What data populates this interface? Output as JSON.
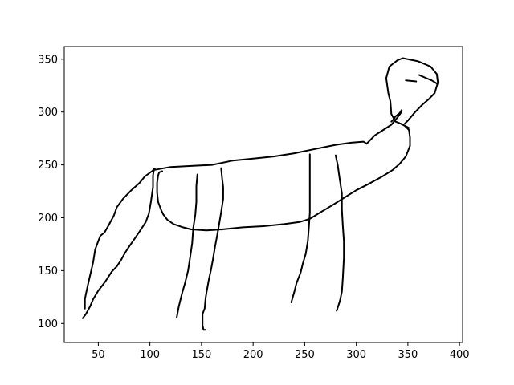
{
  "chart_data": {
    "type": "line",
    "title": "",
    "xlabel": "",
    "ylabel": "",
    "xlim": [
      17,
      403
    ],
    "ylim": [
      82,
      362
    ],
    "grid": false,
    "x_ticks": [
      50,
      100,
      150,
      200,
      250,
      300,
      350,
      400
    ],
    "y_ticks": [
      100,
      150,
      200,
      250,
      300,
      350
    ],
    "x_tick_labels": [
      "50",
      "100",
      "150",
      "200",
      "250",
      "300",
      "350",
      "400"
    ],
    "y_tick_labels": [
      "100",
      "150",
      "200",
      "250",
      "300",
      "350"
    ],
    "line_color": "#000000",
    "series": [
      {
        "points": [
          [
            35,
            105
          ],
          [
            38,
            109
          ],
          [
            42,
            116
          ],
          [
            45,
            123
          ],
          [
            50,
            131
          ],
          [
            57,
            140
          ],
          [
            63,
            149
          ],
          [
            68,
            154
          ],
          [
            72,
            160
          ],
          [
            76,
            167
          ],
          [
            80,
            173
          ],
          [
            85,
            180
          ],
          [
            90,
            187
          ],
          [
            96,
            196
          ],
          [
            99,
            204
          ],
          [
            101,
            215
          ],
          [
            103,
            229
          ],
          [
            103,
            240
          ],
          [
            104,
            246
          ]
        ]
      },
      {
        "points": [
          [
            37,
            114
          ],
          [
            37,
            123
          ],
          [
            38,
            128
          ],
          [
            40,
            137
          ],
          [
            45,
            158
          ],
          [
            47,
            170
          ],
          [
            50,
            178
          ],
          [
            52,
            183
          ],
          [
            56,
            186
          ],
          [
            60,
            193
          ],
          [
            65,
            202
          ],
          [
            68,
            210
          ],
          [
            74,
            218
          ],
          [
            82,
            226
          ],
          [
            90,
            233
          ],
          [
            95,
            239
          ],
          [
            102,
            244
          ],
          [
            105,
            246
          ]
        ]
      },
      {
        "points": [
          [
            103,
            245
          ],
          [
            120,
            248
          ],
          [
            140,
            249
          ],
          [
            160,
            250
          ],
          [
            180,
            254
          ],
          [
            200,
            256
          ],
          [
            220,
            258
          ],
          [
            240,
            261
          ],
          [
            260,
            265
          ],
          [
            280,
            269
          ],
          [
            295,
            271
          ],
          [
            307,
            272
          ],
          [
            310,
            270
          ]
        ]
      },
      {
        "points": [
          [
            310,
            270
          ],
          [
            318,
            278
          ],
          [
            326,
            283
          ],
          [
            334,
            288
          ],
          [
            340,
            295
          ],
          [
            343,
            299
          ],
          [
            344,
            302
          ],
          [
            342,
            299
          ],
          [
            338,
            296
          ],
          [
            336,
            293
          ],
          [
            334,
            291
          ]
        ]
      },
      {
        "points": [
          [
            351,
            285
          ],
          [
            347,
            287
          ],
          [
            343,
            289
          ],
          [
            338,
            291
          ],
          [
            334,
            298
          ],
          [
            333,
            310
          ],
          [
            331,
            318
          ],
          [
            330,
            325
          ],
          [
            329,
            332
          ],
          [
            332,
            343
          ],
          [
            340,
            349
          ],
          [
            345,
            351
          ],
          [
            360,
            348
          ],
          [
            372,
            343
          ],
          [
            378,
            336
          ],
          [
            379,
            328
          ],
          [
            376,
            318
          ],
          [
            370,
            312
          ],
          [
            364,
            307
          ],
          [
            357,
            300
          ],
          [
            350,
            292
          ],
          [
            347,
            289
          ]
        ]
      },
      {
        "points": [
          [
            347,
            287
          ],
          [
            351,
            283
          ],
          [
            352,
            276
          ],
          [
            352,
            268
          ],
          [
            348,
            258
          ],
          [
            342,
            251
          ],
          [
            335,
            245
          ],
          [
            325,
            239
          ],
          [
            312,
            232
          ],
          [
            300,
            226
          ],
          [
            290,
            220
          ],
          [
            277,
            212
          ],
          [
            265,
            205
          ],
          [
            255,
            199
          ],
          [
            245,
            196
          ],
          [
            230,
            194
          ],
          [
            210,
            192
          ],
          [
            190,
            191
          ],
          [
            170,
            189
          ],
          [
            155,
            188
          ],
          [
            140,
            189
          ],
          [
            132,
            191
          ],
          [
            123,
            194
          ],
          [
            117,
            198
          ],
          [
            113,
            203
          ],
          [
            111,
            207
          ],
          [
            108,
            215
          ],
          [
            107,
            224
          ],
          [
            107,
            233
          ],
          [
            108,
            240
          ],
          [
            109,
            243
          ],
          [
            112,
            244
          ]
        ]
      },
      {
        "points": [
          [
            146,
            241
          ],
          [
            145,
            230
          ],
          [
            145,
            215
          ],
          [
            144,
            203
          ],
          [
            142,
            190
          ],
          [
            141,
            176
          ],
          [
            139,
            163
          ],
          [
            137,
            150
          ],
          [
            134,
            138
          ],
          [
            131,
            128
          ],
          [
            128,
            116
          ],
          [
            126,
            106
          ]
        ]
      },
      {
        "points": [
          [
            169,
            247
          ],
          [
            170,
            237
          ],
          [
            171,
            229
          ],
          [
            171,
            218
          ],
          [
            169,
            205
          ],
          [
            166,
            188
          ],
          [
            163,
            172
          ],
          [
            161,
            160
          ],
          [
            159,
            150
          ],
          [
            157,
            141
          ],
          [
            155,
            130
          ],
          [
            154,
            124
          ],
          [
            153,
            114
          ],
          [
            151,
            109
          ],
          [
            151,
            98
          ],
          [
            152,
            94
          ],
          [
            154,
            94
          ]
        ]
      },
      {
        "points": [
          [
            255,
            260
          ],
          [
            255,
            250
          ],
          [
            255,
            234
          ],
          [
            255,
            220
          ],
          [
            255,
            205
          ],
          [
            254,
            190
          ],
          [
            253,
            178
          ],
          [
            251,
            166
          ],
          [
            248,
            156
          ],
          [
            246,
            148
          ],
          [
            242,
            138
          ],
          [
            240,
            130
          ],
          [
            237,
            120
          ]
        ]
      },
      {
        "points": [
          [
            280,
            259
          ],
          [
            282,
            250
          ],
          [
            284,
            236
          ],
          [
            286,
            223
          ],
          [
            286,
            208
          ],
          [
            287,
            192
          ],
          [
            288,
            178
          ],
          [
            288,
            162
          ],
          [
            287,
            143
          ],
          [
            286,
            130
          ],
          [
            284,
            121
          ],
          [
            281,
            112
          ]
        ]
      },
      {
        "points": [
          [
            348,
            330
          ],
          [
            358,
            329
          ]
        ]
      },
      {
        "points": [
          [
            361,
            335
          ],
          [
            368,
            332
          ],
          [
            373,
            330
          ],
          [
            378,
            327
          ]
        ]
      }
    ]
  }
}
